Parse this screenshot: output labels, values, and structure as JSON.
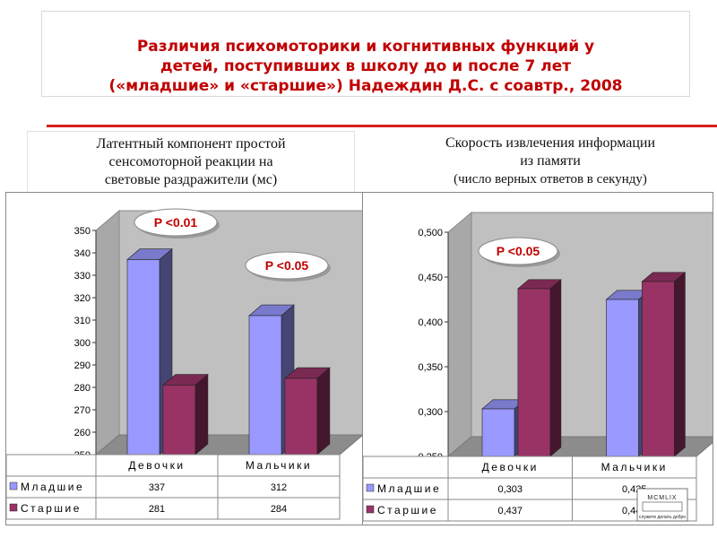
{
  "title": {
    "line1": "Различия психомоторики и когнитивных функций    у",
    "line2": "детей, поступивших в школу до и после 7 лет",
    "line3": "(«младшие» и «старшие») Надеждин Д.С. с соавтр., 2008"
  },
  "subtitles": {
    "left_line1": "Латентный компонент простой",
    "left_line2": "сенсомоторной реакции на",
    "left_line3": "световые раздражители (мс)",
    "right_line1": "Скорость извлечения информации",
    "right_line2": "из памяти",
    "right_line3": "(число верных ответов в секунду)"
  },
  "colors": {
    "accent": "#c00000",
    "young": "#9999ff",
    "old": "#993366"
  },
  "chart_data": [
    {
      "type": "bar",
      "categories": [
        "Девочки",
        "Мальчики"
      ],
      "series": [
        {
          "name": "Младшие",
          "values": [
            337,
            312
          ],
          "labels": [
            "337",
            "312"
          ]
        },
        {
          "name": "Старшие",
          "values": [
            281,
            284
          ],
          "labels": [
            "281",
            "284"
          ]
        }
      ],
      "ylim": [
        250,
        350
      ],
      "yticks": [
        "250",
        "260",
        "270",
        "280",
        "290",
        "300",
        "310",
        "320",
        "330",
        "340",
        "350"
      ],
      "annotations": [
        "P <0.01",
        "P <0.05"
      ],
      "legend": "data-table-below",
      "grid": false
    },
    {
      "type": "bar",
      "categories": [
        "Девочки",
        "Мальчики"
      ],
      "series": [
        {
          "name": "Младшие",
          "values": [
            0.303,
            0.425
          ],
          "labels": [
            "0,303",
            "0,425"
          ]
        },
        {
          "name": "Старшие",
          "values": [
            0.437,
            0.445
          ],
          "labels": [
            "0,437",
            "0,445"
          ]
        }
      ],
      "ylim": [
        0.25,
        0.5
      ],
      "yticks": [
        "0,250",
        "0,300",
        "0,350",
        "0,400",
        "0,450",
        "0,500"
      ],
      "annotations": [
        "P <0.05"
      ],
      "legend": "data-table-below",
      "grid": false
    }
  ],
  "logo": {
    "text": "MCMLIX",
    "motto": "служите делать добро"
  }
}
